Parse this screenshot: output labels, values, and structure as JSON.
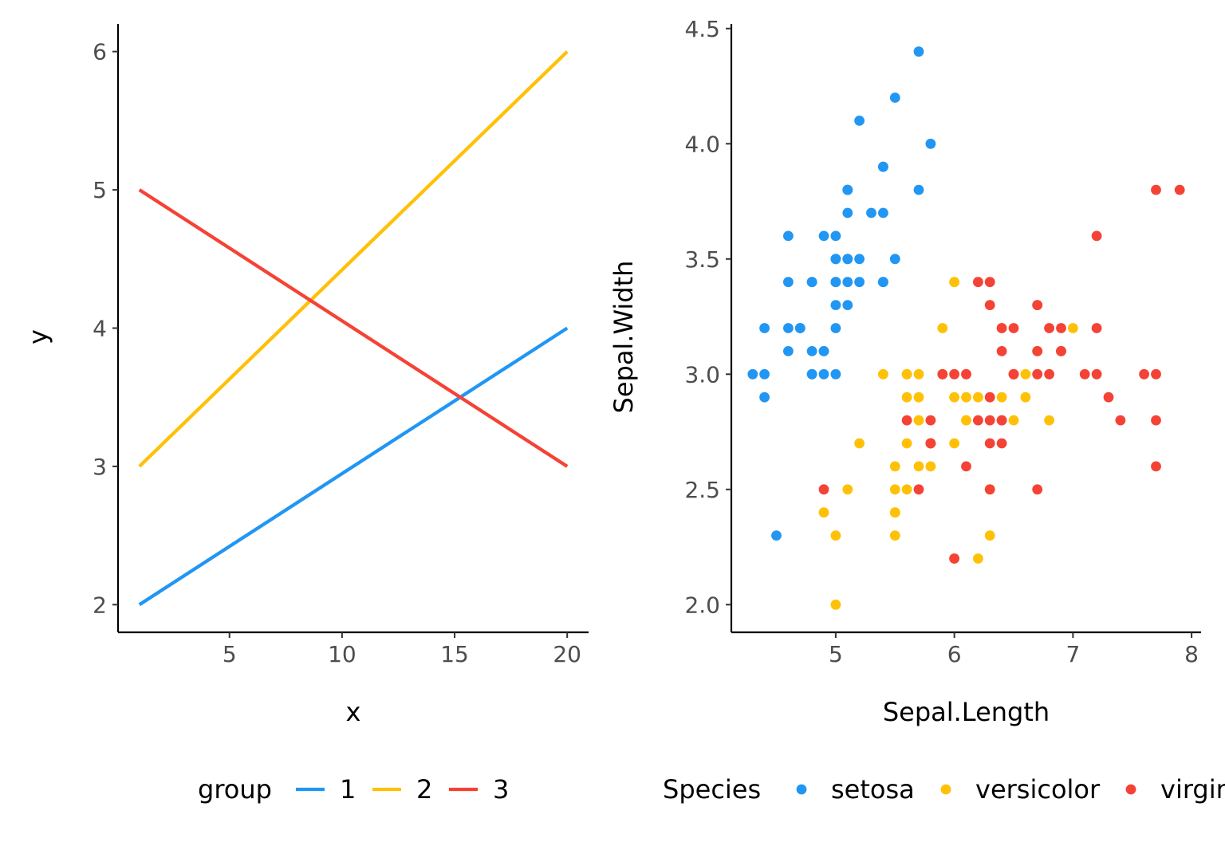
{
  "chart_data": [
    {
      "type": "line",
      "xlabel": "x",
      "ylabel": "y",
      "xlim": [
        0.05,
        20.95
      ],
      "ylim": [
        1.8,
        6.2
      ],
      "xticks": [
        "5",
        "10",
        "15",
        "20"
      ],
      "yticks": [
        "2",
        "3",
        "4",
        "5",
        "6"
      ],
      "grid": false,
      "legend": {
        "title": "group",
        "placement": "bottom"
      },
      "series": [
        {
          "name": "1",
          "color": "#2196F3",
          "x": [
            1,
            20
          ],
          "y": [
            2,
            4
          ]
        },
        {
          "name": "2",
          "color": "#FFC107",
          "x": [
            1,
            20
          ],
          "y": [
            3,
            6
          ]
        },
        {
          "name": "3",
          "color": "#F44336",
          "x": [
            1,
            20
          ],
          "y": [
            5,
            3
          ]
        }
      ]
    },
    {
      "type": "scatter",
      "xlabel": "Sepal.Length",
      "ylabel": "Sepal.Width",
      "xlim": [
        4.12,
        8.08
      ],
      "ylim": [
        1.88,
        4.52
      ],
      "xticks": [
        "5",
        "6",
        "7",
        "8"
      ],
      "yticks": [
        "2.0",
        "2.5",
        "3.0",
        "3.5",
        "4.0",
        "4.5"
      ],
      "grid": false,
      "legend": {
        "title": "Species",
        "placement": "bottom"
      },
      "series": [
        {
          "name": "setosa",
          "color": "#2196F3",
          "points": [
            [
              5.1,
              3.5
            ],
            [
              4.9,
              3.0
            ],
            [
              4.7,
              3.2
            ],
            [
              4.6,
              3.1
            ],
            [
              5.0,
              3.6
            ],
            [
              5.4,
              3.9
            ],
            [
              4.6,
              3.4
            ],
            [
              5.0,
              3.4
            ],
            [
              4.4,
              2.9
            ],
            [
              4.9,
              3.1
            ],
            [
              5.4,
              3.7
            ],
            [
              4.8,
              3.4
            ],
            [
              4.8,
              3.0
            ],
            [
              4.3,
              3.0
            ],
            [
              5.8,
              4.0
            ],
            [
              5.7,
              4.4
            ],
            [
              5.4,
              3.9
            ],
            [
              5.1,
              3.5
            ],
            [
              5.7,
              3.8
            ],
            [
              5.1,
              3.8
            ],
            [
              5.4,
              3.4
            ],
            [
              5.1,
              3.7
            ],
            [
              4.6,
              3.6
            ],
            [
              5.1,
              3.3
            ],
            [
              4.8,
              3.4
            ],
            [
              5.0,
              3.0
            ],
            [
              5.0,
              3.4
            ],
            [
              5.2,
              3.5
            ],
            [
              5.2,
              3.4
            ],
            [
              4.7,
              3.2
            ],
            [
              4.8,
              3.1
            ],
            [
              5.4,
              3.4
            ],
            [
              5.2,
              4.1
            ],
            [
              5.5,
              4.2
            ],
            [
              4.9,
              3.1
            ],
            [
              5.0,
              3.2
            ],
            [
              5.5,
              3.5
            ],
            [
              4.9,
              3.6
            ],
            [
              4.4,
              3.0
            ],
            [
              5.1,
              3.4
            ],
            [
              5.0,
              3.5
            ],
            [
              4.5,
              2.3
            ],
            [
              4.4,
              3.2
            ],
            [
              5.0,
              3.5
            ],
            [
              5.1,
              3.8
            ],
            [
              4.8,
              3.0
            ],
            [
              5.1,
              3.8
            ],
            [
              4.6,
              3.2
            ],
            [
              5.3,
              3.7
            ],
            [
              5.0,
              3.3
            ]
          ]
        },
        {
          "name": "versicolor",
          "color": "#FFC107",
          "points": [
            [
              7.0,
              3.2
            ],
            [
              6.4,
              3.2
            ],
            [
              6.9,
              3.1
            ],
            [
              5.5,
              2.3
            ],
            [
              6.5,
              2.8
            ],
            [
              5.7,
              2.8
            ],
            [
              6.3,
              3.3
            ],
            [
              4.9,
              2.4
            ],
            [
              6.6,
              2.9
            ],
            [
              5.2,
              2.7
            ],
            [
              5.0,
              2.0
            ],
            [
              5.9,
              3.0
            ],
            [
              6.0,
              2.2
            ],
            [
              6.1,
              2.9
            ],
            [
              5.6,
              2.9
            ],
            [
              6.7,
              3.1
            ],
            [
              5.6,
              3.0
            ],
            [
              5.8,
              2.7
            ],
            [
              6.2,
              2.2
            ],
            [
              5.6,
              2.5
            ],
            [
              5.9,
              3.2
            ],
            [
              6.1,
              2.8
            ],
            [
              6.3,
              2.5
            ],
            [
              6.1,
              2.8
            ],
            [
              6.4,
              2.9
            ],
            [
              6.6,
              3.0
            ],
            [
              6.8,
              2.8
            ],
            [
              6.7,
              3.0
            ],
            [
              6.0,
              2.9
            ],
            [
              5.7,
              2.6
            ],
            [
              5.5,
              2.4
            ],
            [
              5.5,
              2.4
            ],
            [
              5.8,
              2.7
            ],
            [
              6.0,
              2.7
            ],
            [
              5.4,
              3.0
            ],
            [
              6.0,
              3.4
            ],
            [
              6.7,
              3.1
            ],
            [
              6.3,
              2.3
            ],
            [
              5.6,
              3.0
            ],
            [
              5.5,
              2.5
            ],
            [
              5.5,
              2.6
            ],
            [
              6.1,
              3.0
            ],
            [
              5.8,
              2.6
            ],
            [
              5.0,
              2.3
            ],
            [
              5.6,
              2.7
            ],
            [
              5.7,
              3.0
            ],
            [
              5.7,
              2.9
            ],
            [
              6.2,
              2.9
            ],
            [
              5.1,
              2.5
            ],
            [
              5.7,
              2.8
            ]
          ]
        },
        {
          "name": "virginica",
          "color": "#F44336",
          "points": [
            [
              6.3,
              3.3
            ],
            [
              5.8,
              2.7
            ],
            [
              7.1,
              3.0
            ],
            [
              6.3,
              2.9
            ],
            [
              6.5,
              3.0
            ],
            [
              7.6,
              3.0
            ],
            [
              4.9,
              2.5
            ],
            [
              7.3,
              2.9
            ],
            [
              6.7,
              2.5
            ],
            [
              7.2,
              3.6
            ],
            [
              6.5,
              3.2
            ],
            [
              6.4,
              2.7
            ],
            [
              6.8,
              3.0
            ],
            [
              5.7,
              2.5
            ],
            [
              5.8,
              2.8
            ],
            [
              6.4,
              3.2
            ],
            [
              6.5,
              3.0
            ],
            [
              7.7,
              3.8
            ],
            [
              7.7,
              2.6
            ],
            [
              6.0,
              2.2
            ],
            [
              6.9,
              3.2
            ],
            [
              5.6,
              2.8
            ],
            [
              7.7,
              2.8
            ],
            [
              6.3,
              2.7
            ],
            [
              6.7,
              3.3
            ],
            [
              7.2,
              3.2
            ],
            [
              6.2,
              2.8
            ],
            [
              6.1,
              3.0
            ],
            [
              6.4,
              2.8
            ],
            [
              7.2,
              3.0
            ],
            [
              7.4,
              2.8
            ],
            [
              7.9,
              3.8
            ],
            [
              6.4,
              2.8
            ],
            [
              6.3,
              2.8
            ],
            [
              6.1,
              2.6
            ],
            [
              7.7,
              3.0
            ],
            [
              6.3,
              3.4
            ],
            [
              6.4,
              3.1
            ],
            [
              6.0,
              3.0
            ],
            [
              6.9,
              3.1
            ],
            [
              6.7,
              3.1
            ],
            [
              6.9,
              3.1
            ],
            [
              5.8,
              2.7
            ],
            [
              6.8,
              3.2
            ],
            [
              6.7,
              3.3
            ],
            [
              6.7,
              3.0
            ],
            [
              6.3,
              2.5
            ],
            [
              6.5,
              3.0
            ],
            [
              6.2,
              3.4
            ],
            [
              5.9,
              3.0
            ]
          ]
        }
      ]
    }
  ]
}
